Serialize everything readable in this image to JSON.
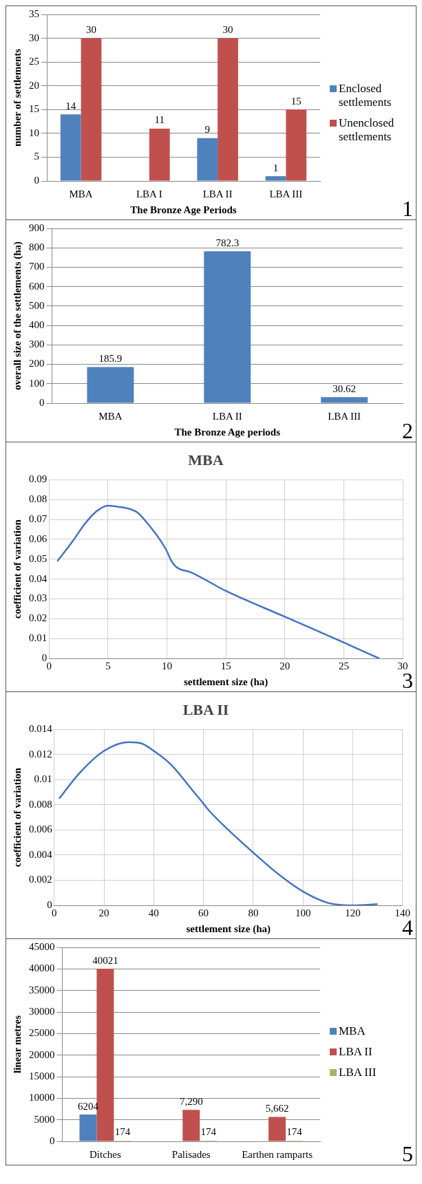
{
  "chart_data": [
    {
      "type": "bar",
      "xlabel": "The Bronze Age Periods",
      "ylabel": "number of settlements",
      "categories": [
        "MBA",
        "LBA I",
        "LBA II",
        "LBA III"
      ],
      "series": [
        {
          "name": "Enclosed settlements",
          "color": "#4f81bd",
          "values": [
            14,
            null,
            9,
            1
          ]
        },
        {
          "name": "Unenclosed settlements",
          "color": "#c0504d",
          "values": [
            30,
            11,
            30,
            15
          ]
        }
      ],
      "ylim": [
        0,
        35
      ],
      "yticks": [
        0,
        5,
        10,
        15,
        20,
        25,
        30,
        35
      ],
      "grid": "y",
      "legend": "right",
      "data_labels": true,
      "annotations": [
        "1"
      ]
    },
    {
      "type": "bar",
      "xlabel": "The Bronze Age periods",
      "ylabel": "overall size of the settlements (ha)",
      "categories": [
        "MBA",
        "LBA II",
        "LBA III"
      ],
      "series": [
        {
          "color": "#4f81bd",
          "values": [
            185.9,
            782.3,
            30.62
          ]
        }
      ],
      "ylim": [
        0,
        900
      ],
      "yticks": [
        0,
        100,
        200,
        300,
        400,
        500,
        600,
        700,
        800,
        900
      ],
      "grid": "y",
      "data_labels": true,
      "annotations": [
        "2"
      ]
    },
    {
      "type": "line",
      "title": "MBA",
      "xlabel": "settlement size (ha)",
      "ylabel": "coefficient of variation",
      "series": [
        {
          "color": "#4472c4",
          "x": [
            0.7,
            2,
            3,
            4,
            5,
            6,
            7,
            7.5,
            8.5,
            9.5,
            10,
            10.3,
            10.8,
            12,
            15,
            20,
            25,
            28
          ],
          "values": [
            0.049,
            0.059,
            0.0675,
            0.074,
            0.077,
            0.0763,
            0.075,
            0.0735,
            0.067,
            0.059,
            0.054,
            0.05,
            0.046,
            0.0435,
            0.034,
            0.021,
            0.008,
            0
          ]
        }
      ],
      "xlim": [
        0,
        30
      ],
      "xticks": [
        0,
        5,
        10,
        15,
        20,
        25,
        30
      ],
      "ylim": [
        0,
        0.09
      ],
      "yticks": [
        0,
        0.01,
        0.02,
        0.03,
        0.04,
        0.05,
        0.06,
        0.07,
        0.08,
        0.09
      ],
      "grid": true,
      "marker": "none",
      "annotations": [
        "3"
      ]
    },
    {
      "type": "line",
      "title": "LBA II",
      "xlabel": "settlement size (ha)",
      "ylabel": "coefficient of variation",
      "series": [
        {
          "color": "#4472c4",
          "x": [
            2,
            10,
            20,
            30,
            35,
            40,
            47,
            55,
            60,
            62,
            70,
            80,
            90,
            100,
            110,
            120,
            130
          ],
          "values": [
            0.0085,
            0.0105,
            0.0123,
            0.013,
            0.0129,
            0.0123,
            0.0112,
            0.0093,
            0.0081,
            0.0076,
            0.006,
            0.0042,
            0.0025,
            0.0011,
            0.0002,
            0,
            0.0001
          ]
        }
      ],
      "xlim": [
        0,
        140
      ],
      "xticks": [
        0,
        20,
        40,
        60,
        80,
        100,
        120,
        140
      ],
      "ylim": [
        0,
        0.014
      ],
      "yticks": [
        0,
        0.002,
        0.004,
        0.006,
        0.008,
        0.01,
        0.012,
        0.014
      ],
      "grid": true,
      "marker": "none",
      "annotations": [
        "4"
      ]
    },
    {
      "type": "bar",
      "ylabel": "linear metres",
      "categories": [
        "Ditches",
        "Palisades",
        "Earthen ramparts"
      ],
      "series": [
        {
          "name": "MBA",
          "color": "#4f81bd",
          "values": [
            6204,
            null,
            null
          ],
          "value_labels": [
            "6204",
            null,
            null
          ]
        },
        {
          "name": "LBA II",
          "color": "#c0504d",
          "values": [
            40021,
            7290,
            5662
          ],
          "value_labels": [
            "40021",
            "7,290",
            "5,662"
          ]
        },
        {
          "name": "LBA III",
          "color": "#9bbb59",
          "values": [
            174,
            174,
            174
          ],
          "value_labels": [
            "174",
            "174",
            "174"
          ]
        }
      ],
      "ylim": [
        0,
        45000
      ],
      "yticks": [
        0,
        5000,
        10000,
        15000,
        20000,
        25000,
        30000,
        35000,
        40000,
        45000
      ],
      "grid": "y",
      "legend": "right",
      "annotations": [
        "5"
      ]
    }
  ]
}
